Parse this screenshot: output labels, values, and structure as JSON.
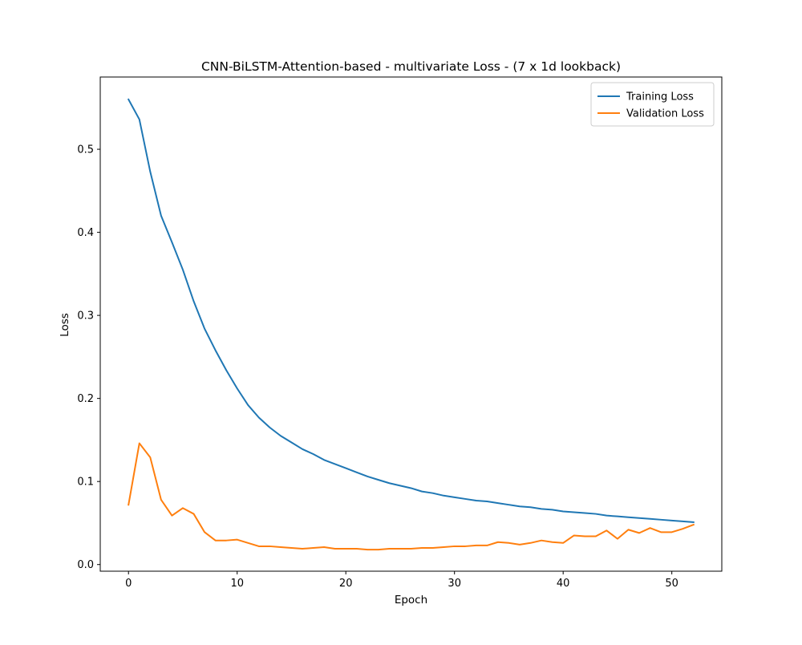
{
  "chart_data": {
    "type": "line",
    "title": "CNN-BiLSTM-Attention-based - multivariate Loss - (7 x 1d lookback)",
    "xlabel": "Epoch",
    "ylabel": "Loss",
    "xlim": [
      -2.6,
      54.6
    ],
    "ylim": [
      -0.008,
      0.587
    ],
    "x_ticks": [
      0,
      10,
      20,
      30,
      40,
      50
    ],
    "y_ticks": [
      0.0,
      0.1,
      0.2,
      0.3,
      0.4,
      0.5
    ],
    "x_tick_labels": [
      "0",
      "10",
      "20",
      "30",
      "40",
      "50"
    ],
    "y_tick_labels": [
      "0.0",
      "0.1",
      "0.2",
      "0.3",
      "0.4",
      "0.5"
    ],
    "grid": false,
    "legend_position": "top-right",
    "x": [
      0,
      1,
      2,
      3,
      4,
      5,
      6,
      7,
      8,
      9,
      10,
      11,
      12,
      13,
      14,
      15,
      16,
      17,
      18,
      19,
      20,
      21,
      22,
      23,
      24,
      25,
      26,
      27,
      28,
      29,
      30,
      31,
      32,
      33,
      34,
      35,
      36,
      37,
      38,
      39,
      40,
      41,
      42,
      43,
      44,
      45,
      46,
      47,
      48,
      49,
      50,
      51,
      52
    ],
    "series": [
      {
        "name": "Training Loss",
        "color": "#1f77b4",
        "values": [
          0.56,
          0.536,
          0.473,
          0.42,
          0.388,
          0.355,
          0.317,
          0.284,
          0.258,
          0.234,
          0.212,
          0.192,
          0.177,
          0.165,
          0.155,
          0.147,
          0.139,
          0.133,
          0.126,
          0.121,
          0.116,
          0.111,
          0.106,
          0.102,
          0.098,
          0.095,
          0.092,
          0.088,
          0.086,
          0.083,
          0.081,
          0.079,
          0.077,
          0.076,
          0.074,
          0.072,
          0.07,
          0.069,
          0.067,
          0.066,
          0.064,
          0.063,
          0.062,
          0.061,
          0.059,
          0.058,
          0.057,
          0.056,
          0.055,
          0.054,
          0.053,
          0.052,
          0.051
        ]
      },
      {
        "name": "Validation Loss",
        "color": "#ff7f0e",
        "values": [
          0.072,
          0.146,
          0.129,
          0.078,
          0.059,
          0.068,
          0.061,
          0.039,
          0.029,
          0.029,
          0.03,
          0.026,
          0.022,
          0.022,
          0.021,
          0.02,
          0.019,
          0.02,
          0.021,
          0.019,
          0.019,
          0.019,
          0.018,
          0.018,
          0.019,
          0.019,
          0.019,
          0.02,
          0.02,
          0.021,
          0.022,
          0.022,
          0.023,
          0.023,
          0.027,
          0.026,
          0.024,
          0.026,
          0.029,
          0.027,
          0.026,
          0.035,
          0.034,
          0.034,
          0.041,
          0.031,
          0.042,
          0.038,
          0.044,
          0.039,
          0.039,
          0.043,
          0.048
        ]
      }
    ]
  }
}
